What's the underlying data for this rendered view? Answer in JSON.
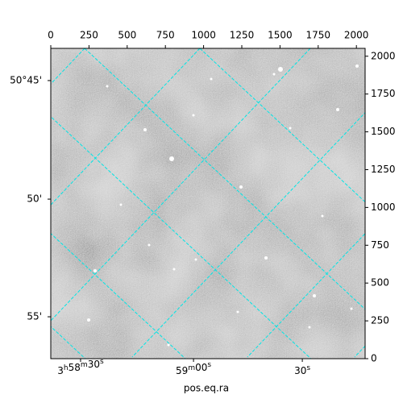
{
  "chart_data": {
    "type": "image",
    "xlabel": "pos.eq.ra",
    "xlim": [
      0,
      2057
    ],
    "ylim": [
      0,
      2052
    ],
    "xticks": [
      0,
      250,
      500,
      750,
      1000,
      1250,
      1500,
      1750,
      2000
    ],
    "yticks": [
      0,
      250,
      500,
      750,
      1000,
      1250,
      1500,
      1750,
      2000
    ],
    "dec_ticks": [
      {
        "value": 1839,
        "label": "50°45'"
      },
      {
        "value": 1055,
        "label": "50'"
      },
      {
        "value": 277,
        "label": "55'"
      }
    ],
    "ra_ticks": [
      {
        "value": 195,
        "label": "3h58m30s"
      },
      {
        "value": 934,
        "label": "59m00s"
      },
      {
        "value": 1646,
        "label": "30s"
      }
    ],
    "grid_color": "#00e5e5"
  }
}
